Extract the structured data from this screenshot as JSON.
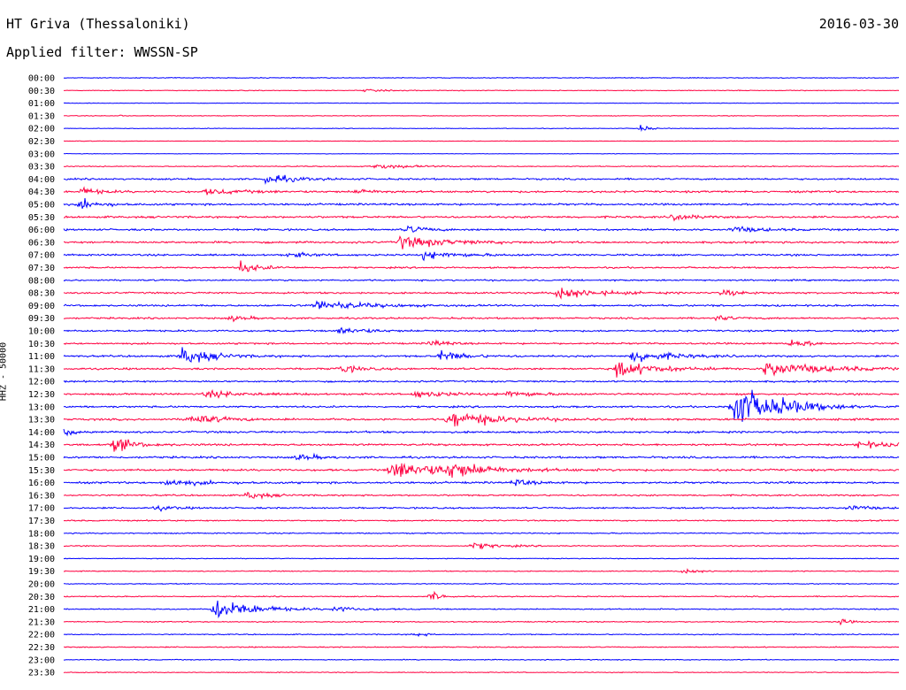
{
  "header": {
    "station": "HT Griva (Thessaloniki)",
    "date": "2016-03-30",
    "filter": "Applied filter: WWSSN-SP"
  },
  "chart_data": {
    "type": "line",
    "ylabel": "HHZ - 50000",
    "trace_colors": [
      "#0000ff",
      "#ff0040"
    ],
    "row_labels": [
      "00:00",
      "00:30",
      "01:00",
      "01:30",
      "02:00",
      "02:30",
      "03:00",
      "03:30",
      "04:00",
      "04:30",
      "05:00",
      "05:30",
      "06:00",
      "06:30",
      "07:00",
      "07:30",
      "08:00",
      "08:30",
      "09:00",
      "09:30",
      "10:00",
      "10:30",
      "11:00",
      "11:30",
      "12:00",
      "12:30",
      "13:00",
      "13:30",
      "14:00",
      "14:30",
      "15:00",
      "15:30",
      "16:00",
      "16:30",
      "17:00",
      "17:30",
      "18:00",
      "18:30",
      "19:00",
      "19:30",
      "20:00",
      "20:30",
      "21:00",
      "21:30",
      "22:00",
      "22:30",
      "23:00",
      "23:30"
    ],
    "row_noise": [
      0.6,
      0.6,
      0.4,
      0.5,
      0.5,
      0.4,
      0.4,
      0.7,
      1.3,
      1.5,
      1.5,
      1.5,
      1.4,
      1.5,
      1.4,
      1.2,
      1.2,
      1.3,
      1.4,
      1.3,
      1.3,
      1.3,
      1.4,
      1.4,
      1.3,
      1.4,
      1.4,
      1.5,
      1.5,
      1.5,
      1.5,
      1.5,
      1.5,
      1.2,
      1.2,
      1.0,
      0.9,
      0.8,
      0.6,
      0.7,
      0.7,
      0.8,
      0.9,
      0.8,
      0.8,
      0.8,
      0.7,
      0.6
    ],
    "events": [
      {
        "row": 1,
        "t": 0.36,
        "amp": 2,
        "dur": 0.02
      },
      {
        "row": 3,
        "t": 0.07,
        "amp": 5,
        "dur": 0.002
      },
      {
        "row": 4,
        "t": 0.69,
        "amp": 8,
        "dur": 0.008
      },
      {
        "row": 7,
        "t": 0.37,
        "amp": 4,
        "dur": 0.04
      },
      {
        "row": 8,
        "t": 0.24,
        "amp": 8,
        "dur": 0.03
      },
      {
        "row": 9,
        "t": 0.02,
        "amp": 6,
        "dur": 0.02
      },
      {
        "row": 9,
        "t": 0.17,
        "amp": 4,
        "dur": 0.04
      },
      {
        "row": 9,
        "t": 0.35,
        "amp": 4,
        "dur": 0.02
      },
      {
        "row": 10,
        "t": 0.02,
        "amp": 8,
        "dur": 0.02
      },
      {
        "row": 11,
        "t": 0.73,
        "amp": 6,
        "dur": 0.02
      },
      {
        "row": 12,
        "t": 0.8,
        "amp": 5,
        "dur": 0.03
      },
      {
        "row": 12,
        "t": 0.41,
        "amp": 6,
        "dur": 0.02
      },
      {
        "row": 13,
        "t": 0.4,
        "amp": 10,
        "dur": 0.05
      },
      {
        "row": 14,
        "t": 0.27,
        "amp": 5,
        "dur": 0.02
      },
      {
        "row": 14,
        "t": 0.43,
        "amp": 6,
        "dur": 0.04
      },
      {
        "row": 15,
        "t": 0.21,
        "amp": 10,
        "dur": 0.02
      },
      {
        "row": 17,
        "t": 0.59,
        "amp": 10,
        "dur": 0.04
      },
      {
        "row": 17,
        "t": 0.79,
        "amp": 5,
        "dur": 0.02
      },
      {
        "row": 18,
        "t": 0.3,
        "amp": 8,
        "dur": 0.05
      },
      {
        "row": 19,
        "t": 0.2,
        "amp": 4,
        "dur": 0.02
      },
      {
        "row": 19,
        "t": 0.78,
        "amp": 4,
        "dur": 0.02
      },
      {
        "row": 20,
        "t": 0.33,
        "amp": 6,
        "dur": 0.03
      },
      {
        "row": 21,
        "t": 0.44,
        "amp": 6,
        "dur": 0.015
      },
      {
        "row": 21,
        "t": 0.87,
        "amp": 7,
        "dur": 0.02
      },
      {
        "row": 22,
        "t": 0.14,
        "amp": 16,
        "dur": 0.03
      },
      {
        "row": 22,
        "t": 0.45,
        "amp": 9,
        "dur": 0.025
      },
      {
        "row": 22,
        "t": 0.68,
        "amp": 10,
        "dur": 0.04
      },
      {
        "row": 23,
        "t": 0.33,
        "amp": 7,
        "dur": 0.02
      },
      {
        "row": 23,
        "t": 0.66,
        "amp": 14,
        "dur": 0.04
      },
      {
        "row": 23,
        "t": 0.84,
        "amp": 12,
        "dur": 0.06
      },
      {
        "row": 25,
        "t": 0.17,
        "amp": 5,
        "dur": 0.04
      },
      {
        "row": 25,
        "t": 0.42,
        "amp": 5,
        "dur": 0.04
      },
      {
        "row": 25,
        "t": 0.53,
        "amp": 5,
        "dur": 0.03
      },
      {
        "row": 26,
        "t": 0.8,
        "amp": 40,
        "dur": 0.04
      },
      {
        "row": 26,
        "t": 0.86,
        "amp": 6,
        "dur": 0.03
      },
      {
        "row": 27,
        "t": 0.15,
        "amp": 9,
        "dur": 0.03
      },
      {
        "row": 27,
        "t": 0.46,
        "amp": 14,
        "dur": 0.05
      },
      {
        "row": 28,
        "t": 0.0,
        "amp": 7,
        "dur": 0.01
      },
      {
        "row": 29,
        "t": 0.06,
        "amp": 13,
        "dur": 0.02
      },
      {
        "row": 29,
        "t": 0.95,
        "amp": 5,
        "dur": 0.04
      },
      {
        "row": 30,
        "t": 0.28,
        "amp": 6,
        "dur": 0.02
      },
      {
        "row": 31,
        "t": 0.39,
        "amp": 14,
        "dur": 0.07
      },
      {
        "row": 31,
        "t": 0.46,
        "amp": 12,
        "dur": 0.03
      },
      {
        "row": 32,
        "t": 0.12,
        "amp": 5,
        "dur": 0.04
      },
      {
        "row": 32,
        "t": 0.54,
        "amp": 5,
        "dur": 0.02
      },
      {
        "row": 33,
        "t": 0.22,
        "amp": 7,
        "dur": 0.02
      },
      {
        "row": 34,
        "t": 0.11,
        "amp": 4,
        "dur": 0.02
      },
      {
        "row": 34,
        "t": 0.94,
        "amp": 5,
        "dur": 0.02
      },
      {
        "row": 37,
        "t": 0.49,
        "amp": 5,
        "dur": 0.03
      },
      {
        "row": 39,
        "t": 0.74,
        "amp": 4,
        "dur": 0.02
      },
      {
        "row": 41,
        "t": 0.44,
        "amp": 10,
        "dur": 0.01
      },
      {
        "row": 42,
        "t": 0.18,
        "amp": 18,
        "dur": 0.04
      },
      {
        "row": 42,
        "t": 0.32,
        "amp": 4,
        "dur": 0.03
      },
      {
        "row": 43,
        "t": 0.93,
        "amp": 5,
        "dur": 0.01
      },
      {
        "row": 44,
        "t": 0.42,
        "amp": 4,
        "dur": 0.01
      }
    ]
  }
}
